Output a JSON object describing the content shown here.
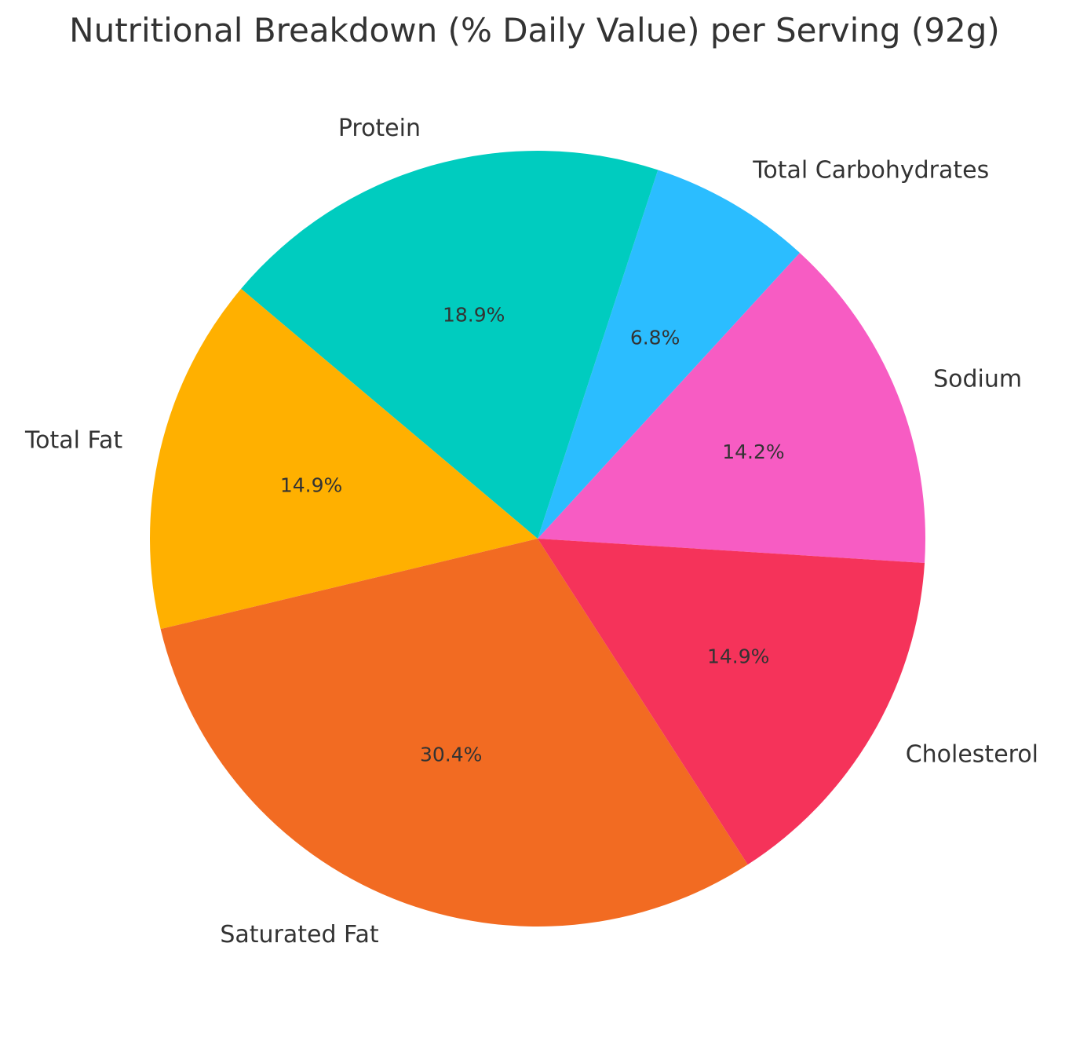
{
  "chart_data": {
    "type": "pie",
    "title": "Nutritional Breakdown (% Daily Value) per Serving (92g)",
    "categories": [
      "Sodium",
      "Total Carbohydrates",
      "Protein",
      "Total Fat",
      "Saturated Fat",
      "Cholesterol"
    ],
    "values": [
      14.2,
      6.8,
      18.9,
      14.9,
      30.4,
      14.9
    ],
    "percent_labels": [
      "14.2%",
      "6.8%",
      "18.9%",
      "14.9%",
      "30.4%",
      "14.9%"
    ],
    "colors": [
      "#F75CC3",
      "#2BBDFF",
      "#00CCBF",
      "#FFB000",
      "#F26B22",
      "#F5335A"
    ],
    "direction": "counterclockwise",
    "start_angle_deg": -3.6
  }
}
